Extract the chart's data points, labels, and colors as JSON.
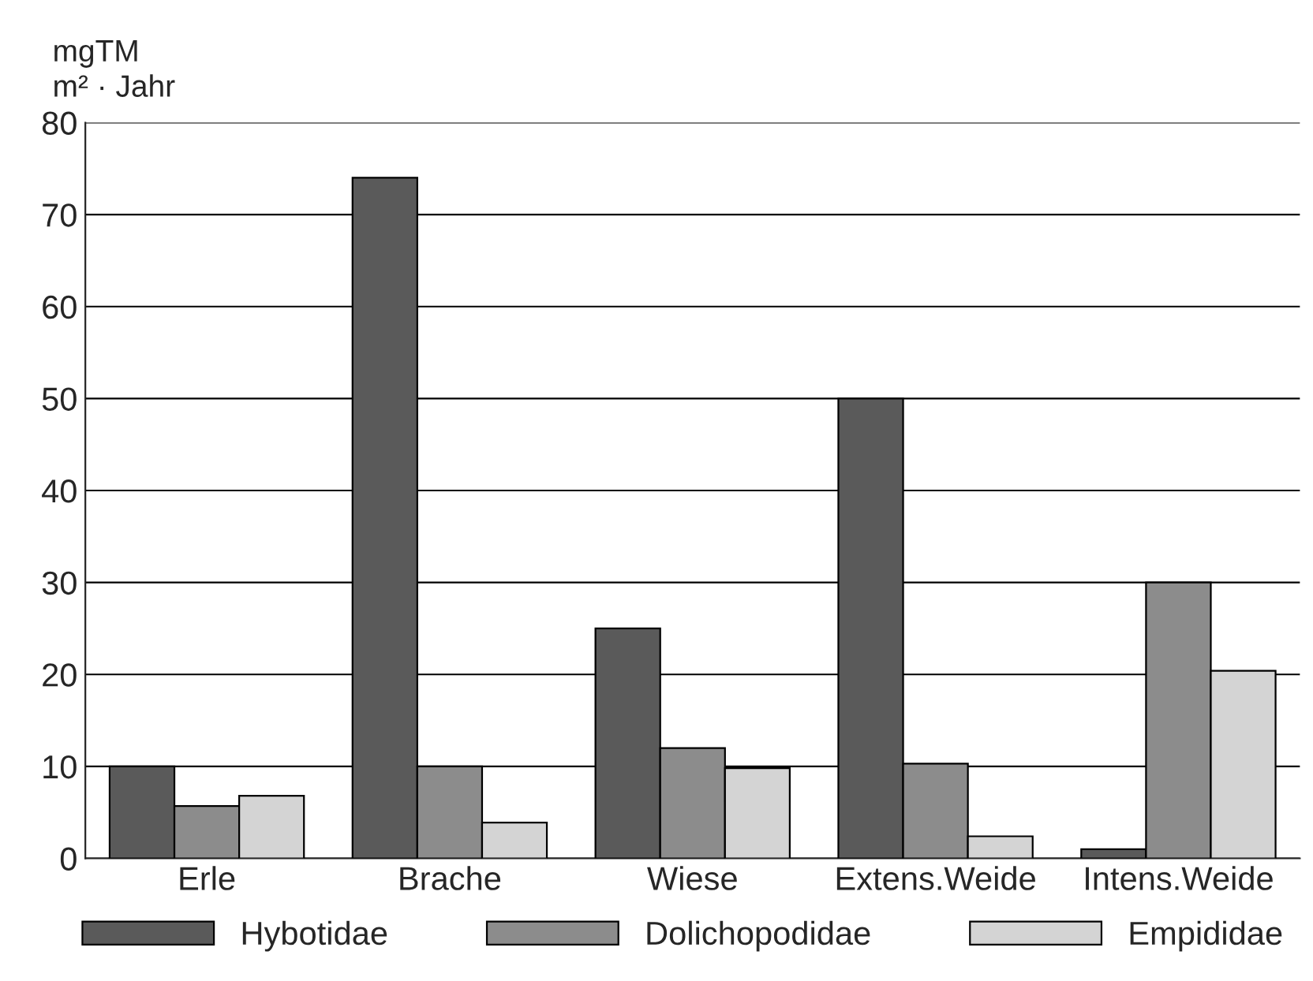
{
  "chart_data": {
    "type": "bar",
    "ylabel": "mgTM\nm² · Jahr",
    "categories": [
      "Erle",
      "Brache",
      "Wiese",
      "Extens.Weide",
      "Intens.Weide"
    ],
    "series": [
      {
        "name": "Hybotidae",
        "color": "#5a5a5a",
        "values": [
          10,
          74,
          25,
          50,
          1
        ]
      },
      {
        "name": "Dolichopodidae",
        "color": "#8c8c8c",
        "values": [
          5.7,
          10,
          12,
          10.3,
          30
        ]
      },
      {
        "name": "Empididae",
        "color": "#d4d4d4",
        "values": [
          6.8,
          3.9,
          9.8,
          2.4,
          20.4
        ]
      }
    ],
    "ylim": [
      0,
      80
    ],
    "yticks": [
      0,
      10,
      20,
      30,
      40,
      50,
      60,
      70,
      80
    ],
    "grid": "y",
    "legend": "bottom"
  }
}
